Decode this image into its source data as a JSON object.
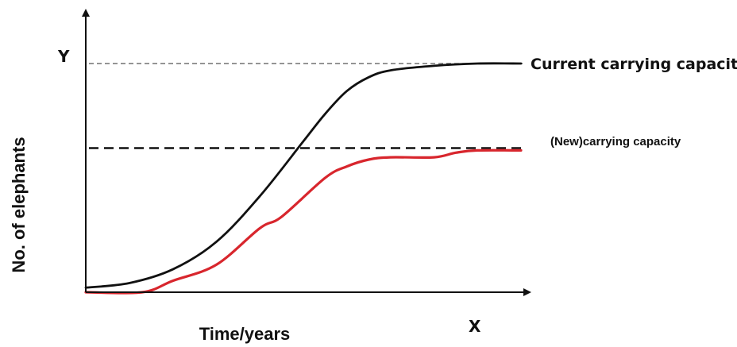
{
  "chart_data": {
    "type": "line",
    "xlabel": "Time/years",
    "ylabel": "No. of elephants",
    "x_axis_letter": "X",
    "y_axis_letter": "Y",
    "grid": false,
    "legend": "none",
    "ylim": [
      0,
      100
    ],
    "xlim": [
      0,
      100
    ],
    "reference_lines": [
      {
        "label": "Current carrying capacity",
        "y": 100,
        "style": "dotted",
        "color": "#555555"
      },
      {
        "label": "(New)carrying capacity",
        "y": 63,
        "style": "dashed",
        "color": "#111111"
      }
    ],
    "series": [
      {
        "color": "#111111",
        "x": [
          0,
          10,
          20,
          30,
          40,
          50,
          55,
          60,
          65,
          70,
          80,
          90,
          100
        ],
        "y": [
          2,
          4,
          10,
          22,
          42,
          66,
          78,
          88,
          94,
          97,
          99,
          100,
          100
        ]
      },
      {
        "color": "#d8262d",
        "x": [
          0,
          13,
          20,
          30,
          40,
          45,
          55,
          60,
          65,
          70,
          80,
          85,
          90,
          100
        ],
        "y": [
          0,
          0,
          5,
          12,
          28,
          33,
          50,
          55,
          58,
          59,
          59,
          61,
          62,
          62
        ]
      }
    ]
  }
}
